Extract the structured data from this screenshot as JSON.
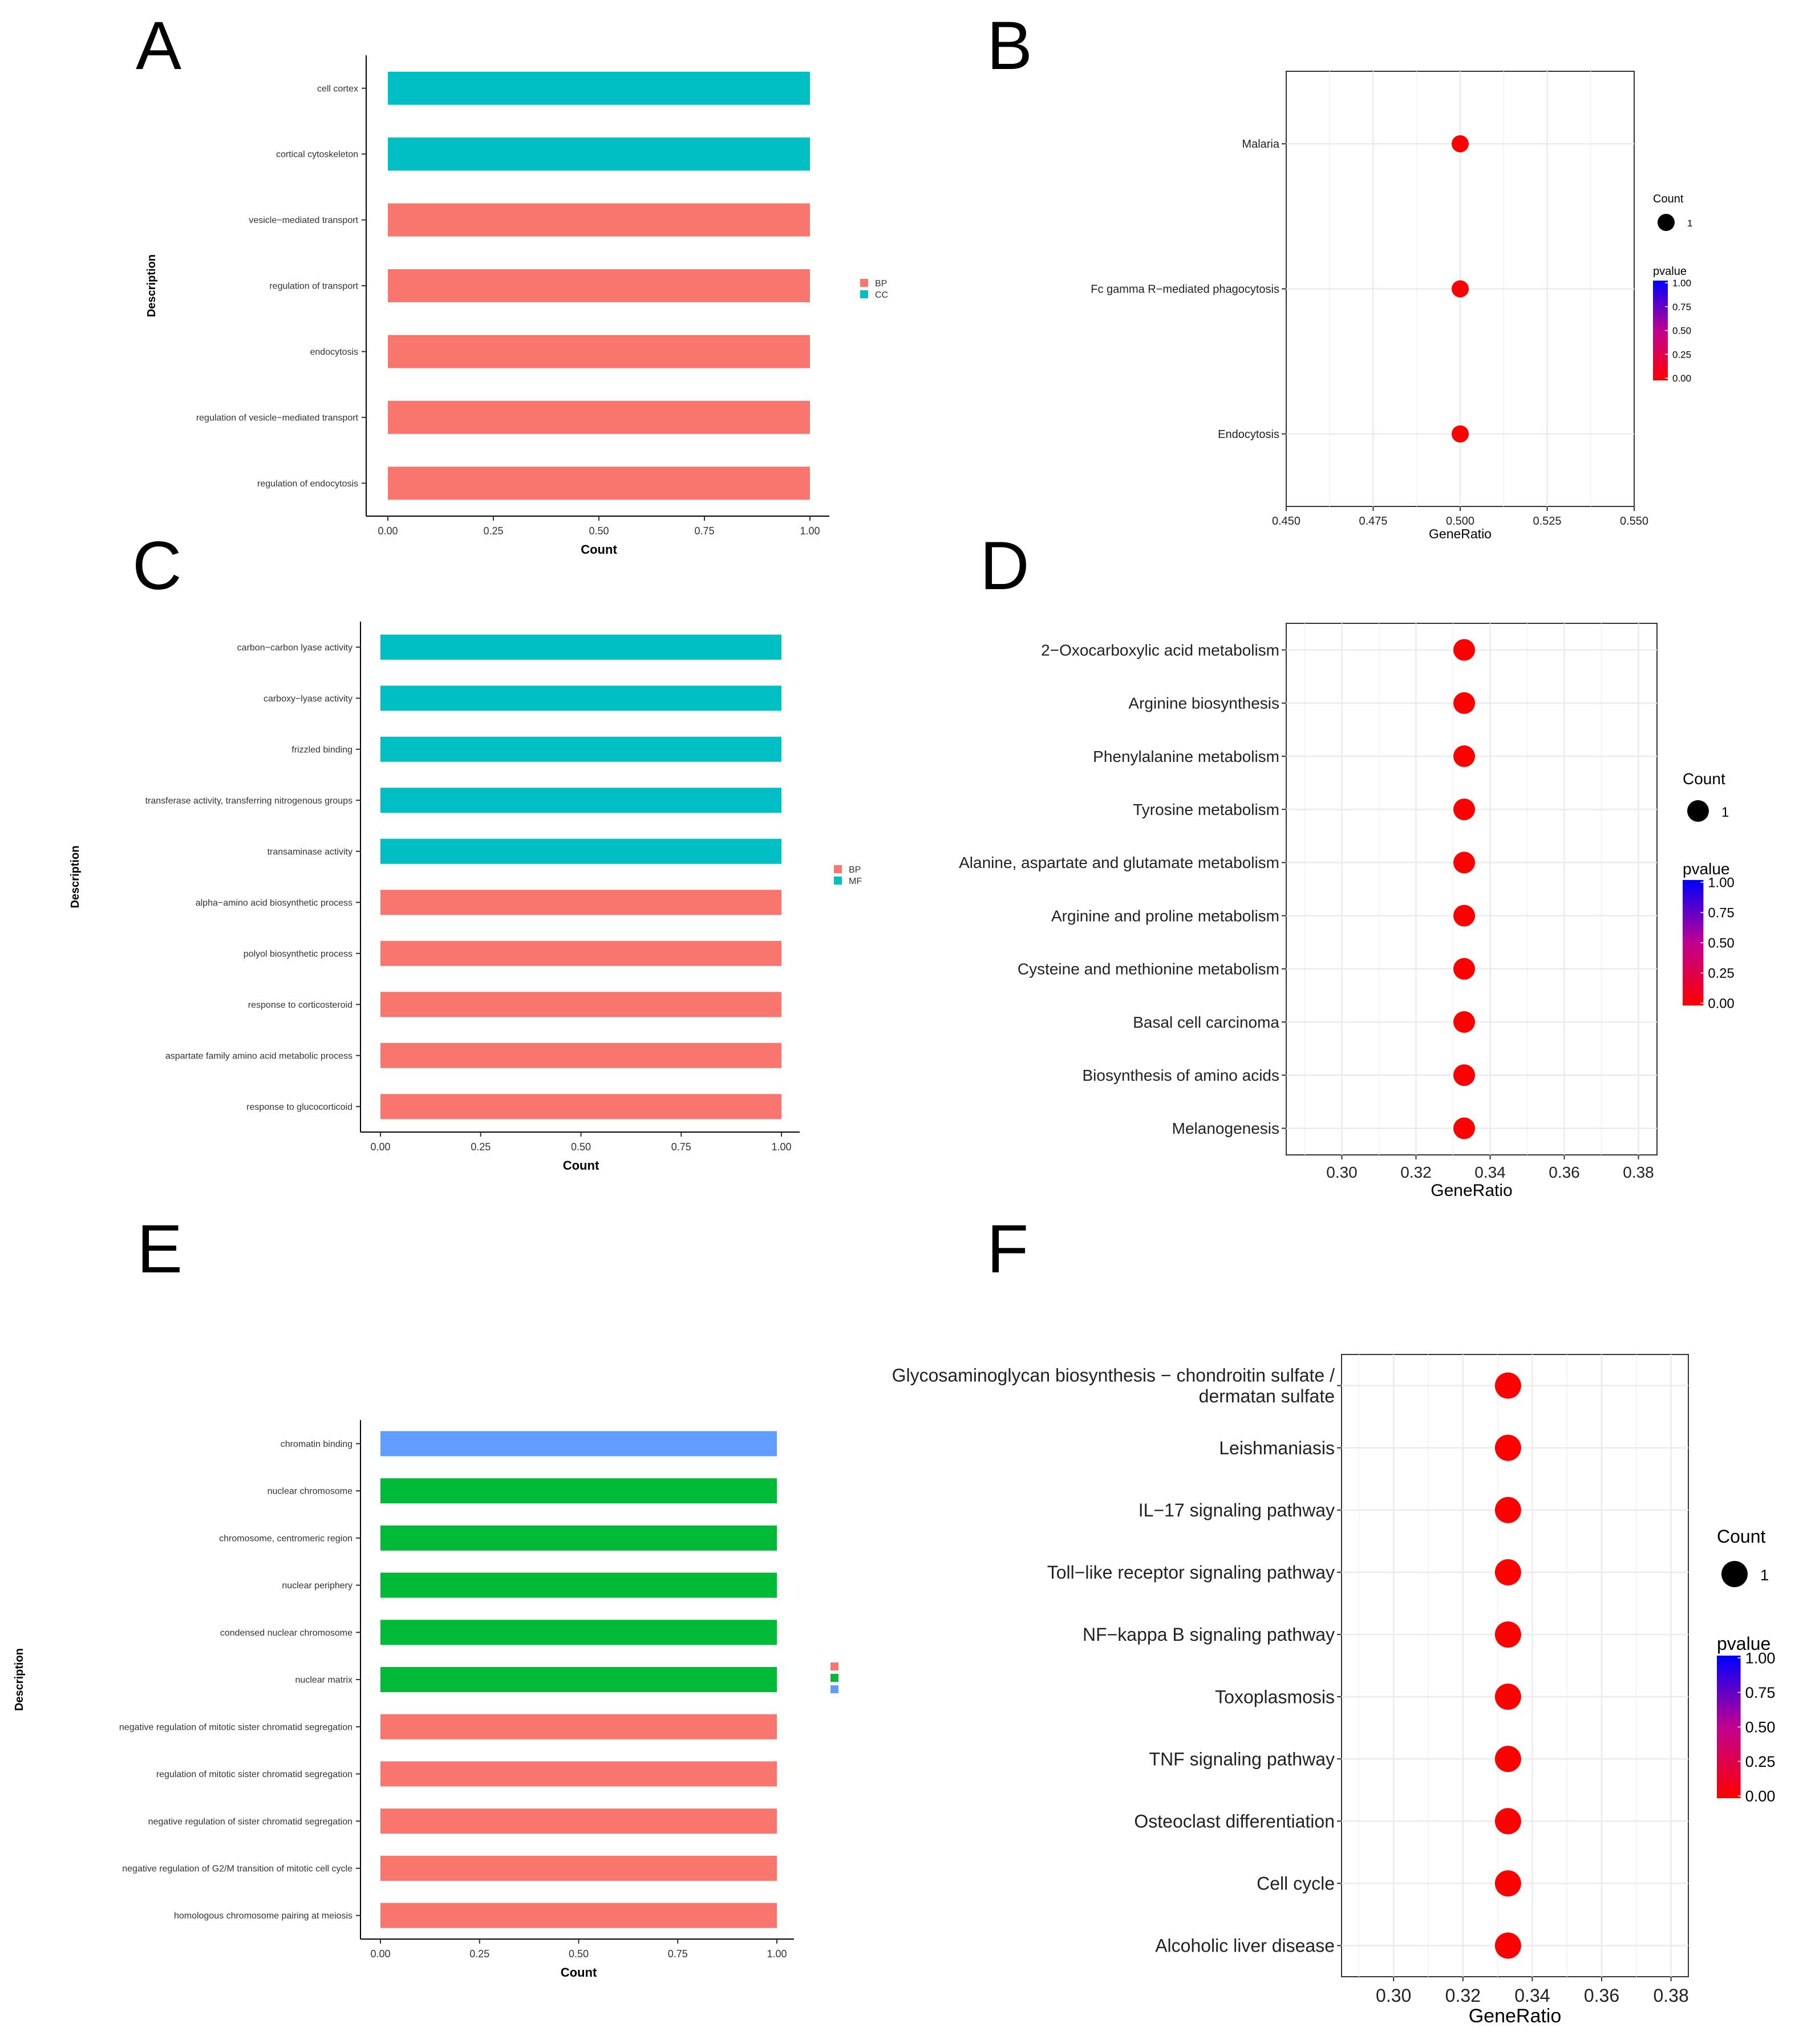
{
  "panel_labels": {
    "a": "A",
    "b": "B",
    "c": "C",
    "d": "D",
    "e": "E",
    "f": "F"
  },
  "colors": {
    "BP": "#F8766D",
    "CC": "#00BFC4",
    "MF": "#00BFC4",
    "E1": "#F8766D",
    "E2": "#00BA38",
    "E3": "#619CFF",
    "dot": "#FF0000",
    "grid": "#EBEBEB",
    "low": "#FF0000",
    "high": "#0000FF"
  },
  "chart_data": [
    {
      "panel": "A",
      "type": "bar",
      "orientation": "horizontal",
      "ylabel": "Description",
      "xlabel": "Count",
      "xlim": [
        0,
        1
      ],
      "xticks": [
        "0.00",
        "0.25",
        "0.50",
        "0.75",
        "1.00"
      ],
      "categories": [
        "cell cortex",
        "cortical cytoskeleton",
        "vesicle−mediated transport",
        "regulation of transport",
        "endocytosis",
        "regulation of vesicle−mediated transport",
        "regulation of endocytosis"
      ],
      "values": [
        1,
        1,
        1,
        1,
        1,
        1,
        1
      ],
      "groups": [
        "CC",
        "CC",
        "BP",
        "BP",
        "BP",
        "BP",
        "BP"
      ],
      "legend": [
        "BP",
        "CC"
      ]
    },
    {
      "panel": "B",
      "type": "scatter",
      "xlabel": "GeneRatio",
      "xlim": [
        0.45,
        0.55
      ],
      "xticks": [
        "0.450",
        "0.475",
        "0.500",
        "0.525",
        "0.550"
      ],
      "categories": [
        "Malaria",
        "Fc gamma R−mediated phagocytosis",
        "Endocytosis"
      ],
      "x": [
        0.5,
        0.5,
        0.5
      ],
      "count": [
        1,
        1,
        1
      ],
      "pvalue": [
        0.02,
        0.02,
        0.02
      ],
      "legend_size_title": "Count",
      "legend_size_value": "1",
      "legend_color_title": "pvalue",
      "legend_color_ticks": [
        "1.00",
        "0.75",
        "0.50",
        "0.25",
        "0.00"
      ]
    },
    {
      "panel": "C",
      "type": "bar",
      "orientation": "horizontal",
      "ylabel": "Description",
      "xlabel": "Count",
      "xlim": [
        0,
        1
      ],
      "xticks": [
        "0.00",
        "0.25",
        "0.50",
        "0.75",
        "1.00"
      ],
      "categories": [
        "carbon−carbon lyase activity",
        "carboxy−lyase activity",
        "frizzled binding",
        "transferase activity, transferring nitrogenous groups",
        "transaminase activity",
        "alpha−amino acid biosynthetic process",
        "polyol biosynthetic process",
        "response to corticosteroid",
        "aspartate family amino acid metabolic process",
        "response to glucocorticoid"
      ],
      "values": [
        1,
        1,
        1,
        1,
        1,
        1,
        1,
        1,
        1,
        1
      ],
      "groups": [
        "MF",
        "MF",
        "MF",
        "MF",
        "MF",
        "BP",
        "BP",
        "BP",
        "BP",
        "BP"
      ],
      "legend": [
        "BP",
        "MF"
      ]
    },
    {
      "panel": "D",
      "type": "scatter",
      "xlabel": "GeneRatio",
      "xlim": [
        0.285,
        0.385
      ],
      "xticks": [
        "0.30",
        "0.32",
        "0.34",
        "0.36",
        "0.38"
      ],
      "categories": [
        "2−Oxocarboxylic acid metabolism",
        "Arginine biosynthesis",
        "Phenylalanine metabolism",
        "Tyrosine metabolism",
        "Alanine, aspartate and glutamate metabolism",
        "Arginine and proline metabolism",
        "Cysteine and methionine metabolism",
        "Basal cell carcinoma",
        "Biosynthesis of amino acids",
        "Melanogenesis"
      ],
      "x": [
        0.333,
        0.333,
        0.333,
        0.333,
        0.333,
        0.333,
        0.333,
        0.333,
        0.333,
        0.333
      ],
      "count": [
        1,
        1,
        1,
        1,
        1,
        1,
        1,
        1,
        1,
        1
      ],
      "pvalue": [
        0.02,
        0.02,
        0.02,
        0.02,
        0.02,
        0.02,
        0.02,
        0.02,
        0.02,
        0.02
      ],
      "legend_size_title": "Count",
      "legend_size_value": "1",
      "legend_color_title": "pvalue",
      "legend_color_ticks": [
        "1.00",
        "0.75",
        "0.50",
        "0.25",
        "0.00"
      ]
    },
    {
      "panel": "E",
      "type": "bar",
      "orientation": "horizontal",
      "ylabel": "Description",
      "xlabel": "Count",
      "xlim": [
        0,
        1
      ],
      "xticks": [
        "0.00",
        "0.25",
        "0.50",
        "0.75",
        "1.00"
      ],
      "categories": [
        "chromatin binding",
        "nuclear chromosome",
        "chromosome, centromeric region",
        "nuclear periphery",
        "condensed nuclear chromosome",
        "nuclear matrix",
        "negative regulation of mitotic sister chromatid segregation",
        "regulation of mitotic sister chromatid segregation",
        "negative regulation of sister chromatid segregation",
        "negative regulation of G2/M transition of mitotic cell cycle",
        "homologous chromosome pairing at meiosis"
      ],
      "values": [
        1,
        1,
        1,
        1,
        1,
        1,
        1,
        1,
        1,
        1,
        1
      ],
      "groups": [
        "E3",
        "E2",
        "E2",
        "E2",
        "E2",
        "E2",
        "E1",
        "E1",
        "E1",
        "E1",
        "E1"
      ],
      "legend": [
        "",
        "",
        ""
      ]
    },
    {
      "panel": "F",
      "type": "scatter",
      "xlabel": "GeneRatio",
      "xlim": [
        0.285,
        0.385
      ],
      "xticks": [
        "0.30",
        "0.32",
        "0.34",
        "0.36",
        "0.38"
      ],
      "categories": [
        "Glycosaminoglycan biosynthesis − chondroitin sulfate / dermatan sulfate",
        "Leishmaniasis",
        "IL−17 signaling pathway",
        "Toll−like receptor signaling pathway",
        "NF−kappa B signaling pathway",
        "Toxoplasmosis",
        "TNF signaling pathway",
        "Osteoclast differentiation",
        "Cell cycle",
        "Alcoholic liver disease"
      ],
      "x": [
        0.333,
        0.333,
        0.333,
        0.333,
        0.333,
        0.333,
        0.333,
        0.333,
        0.333,
        0.333
      ],
      "count": [
        1,
        1,
        1,
        1,
        1,
        1,
        1,
        1,
        1,
        1
      ],
      "pvalue": [
        0.02,
        0.02,
        0.02,
        0.02,
        0.02,
        0.02,
        0.02,
        0.02,
        0.02,
        0.02
      ],
      "legend_size_title": "Count",
      "legend_size_value": "1",
      "legend_color_title": "pvalue",
      "legend_color_ticks": [
        "1.00",
        "0.75",
        "0.50",
        "0.25",
        "0.00"
      ]
    }
  ]
}
